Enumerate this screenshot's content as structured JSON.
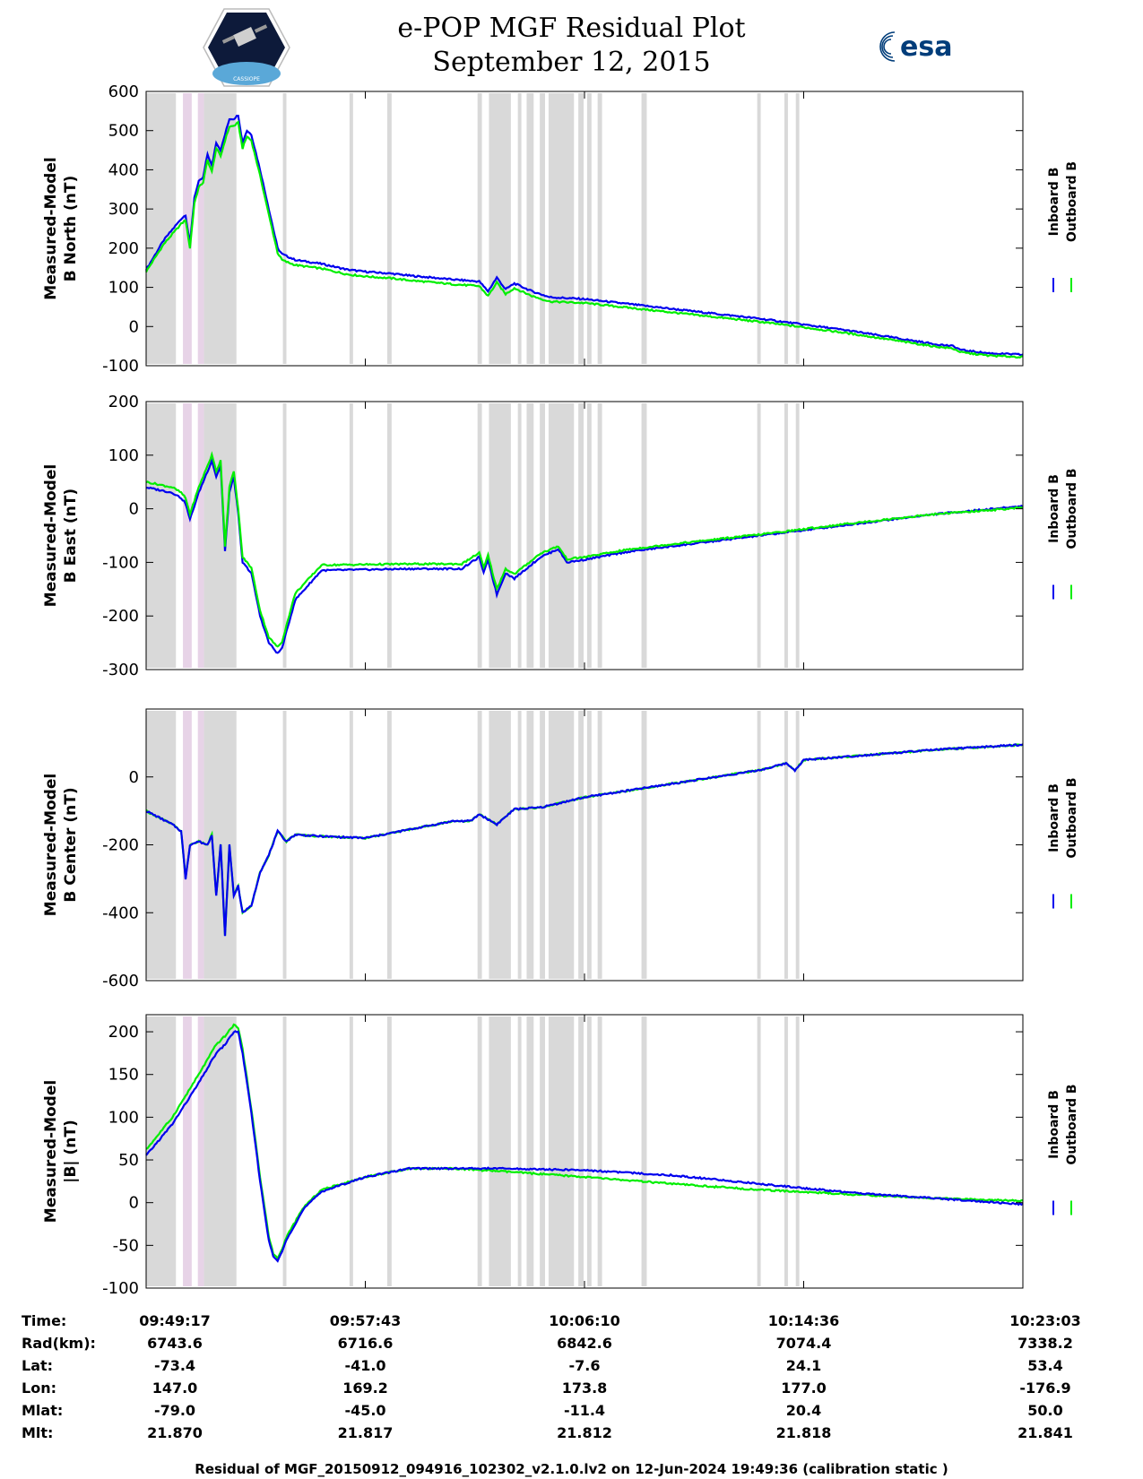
{
  "header": {
    "title": "e-POP MGF Residual Plot",
    "date": "September 12, 2015",
    "left_logo_text": "CASSIOPE",
    "right_logo_text": "esa"
  },
  "legend": {
    "inboard": "Inboard B",
    "outboard": "Outboard B"
  },
  "colors": {
    "inboard": "#0000ee",
    "outboard": "#00ee00",
    "shade_gray": "#d9d9d9",
    "shade_pink": "#e7d3e7"
  },
  "time_axis": {
    "ticks": [
      "09:49:17",
      "09:57:43",
      "10:06:10",
      "10:14:36",
      "10:23:03"
    ],
    "tick_frac": [
      0,
      0.25,
      0.5,
      0.75,
      1.0
    ],
    "shaded_intervals": [
      {
        "start": 0.0,
        "end": 0.034,
        "color": "gray"
      },
      {
        "start": 0.042,
        "end": 0.052,
        "color": "pink"
      },
      {
        "start": 0.059,
        "end": 0.066,
        "color": "pink"
      },
      {
        "start": 0.066,
        "end": 0.103,
        "color": "gray"
      },
      {
        "start": 0.156,
        "end": 0.16,
        "color": "gray"
      },
      {
        "start": 0.232,
        "end": 0.236,
        "color": "gray"
      },
      {
        "start": 0.275,
        "end": 0.28,
        "color": "gray"
      },
      {
        "start": 0.378,
        "end": 0.383,
        "color": "gray"
      },
      {
        "start": 0.391,
        "end": 0.416,
        "color": "gray"
      },
      {
        "start": 0.424,
        "end": 0.428,
        "color": "gray"
      },
      {
        "start": 0.434,
        "end": 0.442,
        "color": "gray"
      },
      {
        "start": 0.449,
        "end": 0.455,
        "color": "gray"
      },
      {
        "start": 0.459,
        "end": 0.488,
        "color": "gray"
      },
      {
        "start": 0.493,
        "end": 0.499,
        "color": "gray"
      },
      {
        "start": 0.503,
        "end": 0.508,
        "color": "gray"
      },
      {
        "start": 0.515,
        "end": 0.52,
        "color": "gray"
      },
      {
        "start": 0.565,
        "end": 0.571,
        "color": "gray"
      },
      {
        "start": 0.697,
        "end": 0.701,
        "color": "gray"
      },
      {
        "start": 0.728,
        "end": 0.732,
        "color": "gray"
      },
      {
        "start": 0.741,
        "end": 0.745,
        "color": "gray"
      }
    ]
  },
  "chart_data": [
    {
      "type": "line",
      "ylabel_line1": "Measured-Model",
      "ylabel_line2": "B North (nT)",
      "ylim": [
        -100,
        600
      ],
      "yticks": [
        -100,
        0,
        100,
        200,
        300,
        400,
        500,
        600
      ],
      "x": [
        0,
        0.02,
        0.04,
        0.045,
        0.05,
        0.055,
        0.06,
        0.065,
        0.07,
        0.075,
        0.08,
        0.085,
        0.09,
        0.095,
        0.1,
        0.105,
        0.11,
        0.115,
        0.12,
        0.13,
        0.14,
        0.15,
        0.155,
        0.16,
        0.17,
        0.2,
        0.23,
        0.25,
        0.28,
        0.3,
        0.35,
        0.38,
        0.39,
        0.4,
        0.41,
        0.42,
        0.44,
        0.46,
        0.5,
        0.6,
        0.7,
        0.75,
        0.8,
        0.9,
        0.92,
        0.93,
        0.96,
        1.0
      ],
      "series": [
        {
          "name": "Inboard B",
          "values": [
            145,
            220,
            275,
            285,
            210,
            330,
            370,
            380,
            440,
            410,
            470,
            450,
            490,
            530,
            530,
            540,
            470,
            500,
            490,
            400,
            300,
            200,
            185,
            180,
            170,
            160,
            145,
            140,
            135,
            130,
            120,
            115,
            90,
            125,
            95,
            110,
            90,
            75,
            70,
            45,
            20,
            5,
            -10,
            -45,
            -50,
            -60,
            -68,
            -72
          ]
        },
        {
          "name": "Outboard B",
          "values": [
            140,
            210,
            262,
            272,
            200,
            315,
            355,
            368,
            425,
            395,
            455,
            435,
            475,
            510,
            512,
            520,
            455,
            485,
            475,
            385,
            285,
            188,
            170,
            165,
            157,
            148,
            133,
            128,
            123,
            118,
            108,
            103,
            78,
            112,
            83,
            98,
            78,
            64,
            60,
            36,
            12,
            -2,
            -17,
            -51,
            -56,
            -66,
            -74,
            -78
          ]
        }
      ]
    },
    {
      "type": "line",
      "ylabel_line1": "Measured-Model",
      "ylabel_line2": "B East (nT)",
      "ylim": [
        -300,
        200
      ],
      "yticks": [
        -300,
        -200,
        -100,
        0,
        100,
        200
      ],
      "x": [
        0,
        0.03,
        0.04,
        0.045,
        0.05,
        0.06,
        0.07,
        0.075,
        0.08,
        0.085,
        0.09,
        0.095,
        0.1,
        0.105,
        0.11,
        0.12,
        0.13,
        0.14,
        0.15,
        0.155,
        0.17,
        0.2,
        0.3,
        0.36,
        0.38,
        0.385,
        0.39,
        0.4,
        0.41,
        0.42,
        0.45,
        0.47,
        0.48,
        0.5,
        0.55,
        0.6,
        0.7,
        0.8,
        0.9,
        1.0
      ],
      "series": [
        {
          "name": "Inboard B",
          "values": [
            40,
            30,
            20,
            10,
            -20,
            30,
            70,
            90,
            60,
            80,
            -80,
            30,
            60,
            -10,
            -100,
            -120,
            -200,
            -250,
            -270,
            -260,
            -170,
            -115,
            -112,
            -112,
            -90,
            -120,
            -95,
            -160,
            -120,
            -130,
            -90,
            -75,
            -100,
            -95,
            -80,
            -70,
            -50,
            -30,
            -10,
            5
          ]
        },
        {
          "name": "Outboard B",
          "values": [
            50,
            40,
            30,
            20,
            -10,
            40,
            80,
            100,
            70,
            90,
            -70,
            40,
            70,
            0,
            -90,
            -110,
            -190,
            -240,
            -258,
            -248,
            -158,
            -105,
            -103,
            -103,
            -82,
            -110,
            -87,
            -150,
            -112,
            -122,
            -83,
            -70,
            -94,
            -90,
            -76,
            -66,
            -48,
            -28,
            -10,
            2
          ]
        }
      ]
    },
    {
      "type": "line",
      "ylabel_line1": "Measured-Model",
      "ylabel_line2": "B Center (nT)",
      "ylim": [
        -600,
        200
      ],
      "yticks": [
        -600,
        -400,
        -200,
        0
      ],
      "x": [
        0,
        0.03,
        0.04,
        0.045,
        0.05,
        0.06,
        0.07,
        0.075,
        0.08,
        0.085,
        0.09,
        0.095,
        0.1,
        0.105,
        0.11,
        0.12,
        0.13,
        0.14,
        0.15,
        0.16,
        0.17,
        0.2,
        0.25,
        0.3,
        0.35,
        0.37,
        0.38,
        0.4,
        0.42,
        0.45,
        0.5,
        0.55,
        0.6,
        0.65,
        0.7,
        0.73,
        0.74,
        0.75,
        0.8,
        0.9,
        1.0
      ],
      "series": [
        {
          "name": "Outboard B",
          "values": [
            -100,
            -140,
            -160,
            -300,
            -200,
            -190,
            -200,
            -170,
            -350,
            -200,
            -470,
            -200,
            -350,
            -320,
            -400,
            -380,
            -280,
            -230,
            -160,
            -190,
            -170,
            -175,
            -180,
            -155,
            -130,
            -130,
            -110,
            -140,
            -95,
            -90,
            -60,
            -40,
            -20,
            0,
            20,
            40,
            20,
            50,
            60,
            80,
            95
          ]
        },
        {
          "name": "Inboard B",
          "values": [
            -100,
            -140,
            -160,
            -300,
            -200,
            -190,
            -200,
            -170,
            -350,
            -200,
            -470,
            -200,
            -350,
            -320,
            -400,
            -380,
            -280,
            -230,
            -160,
            -190,
            -170,
            -175,
            -180,
            -155,
            -130,
            -130,
            -110,
            -140,
            -95,
            -90,
            -60,
            -40,
            -20,
            0,
            20,
            40,
            20,
            50,
            60,
            80,
            95
          ]
        }
      ]
    },
    {
      "type": "line",
      "ylabel_line1": "Measured-Model",
      "ylabel_line2": "|B| (nT)",
      "ylim": [
        -100,
        220
      ],
      "yticks": [
        -100,
        -50,
        0,
        50,
        100,
        150,
        200
      ],
      "x": [
        0,
        0.03,
        0.06,
        0.08,
        0.09,
        0.1,
        0.105,
        0.11,
        0.12,
        0.13,
        0.14,
        0.145,
        0.15,
        0.155,
        0.16,
        0.18,
        0.2,
        0.25,
        0.3,
        0.35,
        0.4,
        0.5,
        0.6,
        0.7,
        0.8,
        0.9,
        1.0
      ],
      "series": [
        {
          "name": "Outboard B",
          "values": [
            62,
            100,
            150,
            185,
            195,
            208,
            205,
            180,
            110,
            30,
            -40,
            -60,
            -65,
            -55,
            -40,
            -5,
            15,
            30,
            40,
            40,
            37,
            30,
            22,
            15,
            10,
            5,
            2
          ]
        },
        {
          "name": "Inboard B",
          "values": [
            55,
            92,
            140,
            175,
            185,
            200,
            200,
            175,
            105,
            25,
            -45,
            -63,
            -68,
            -58,
            -43,
            -7,
            13,
            30,
            40,
            40,
            40,
            38,
            32,
            22,
            12,
            5,
            -2
          ]
        }
      ]
    }
  ],
  "info_table": {
    "rows": [
      {
        "label": "Time:",
        "values": [
          "09:49:17",
          "09:57:43",
          "10:06:10",
          "10:14:36",
          "10:23:03"
        ]
      },
      {
        "label": "Rad(km):",
        "values": [
          "6743.6",
          "6716.6",
          "6842.6",
          "7074.4",
          "7338.2"
        ]
      },
      {
        "label": "Lat:",
        "values": [
          "-73.4",
          "-41.0",
          "-7.6",
          "24.1",
          "53.4"
        ]
      },
      {
        "label": "Lon:",
        "values": [
          "147.0",
          "169.2",
          "173.8",
          "177.0",
          "-176.9"
        ]
      },
      {
        "label": "Mlat:",
        "values": [
          "-79.0",
          "-45.0",
          "-11.4",
          "20.4",
          "50.0"
        ]
      },
      {
        "label": "Mlt:",
        "values": [
          "21.870",
          "21.817",
          "21.812",
          "21.818",
          "21.841"
        ]
      }
    ]
  },
  "footer": "Residual of MGF_20150912_094916_102302_v2.1.0.lv2 on 12-Jun-2024 19:49:36 (calibration static )"
}
